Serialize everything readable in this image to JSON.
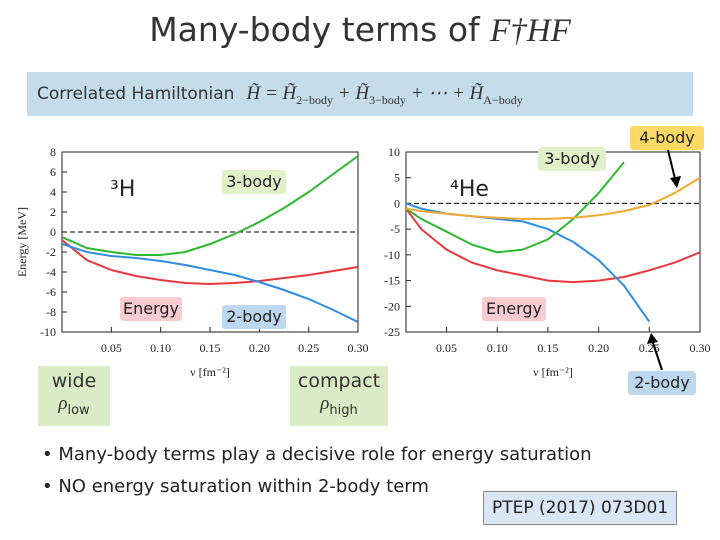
{
  "title": {
    "text": "Many-body terms of ",
    "math": "F†HF"
  },
  "banner": {
    "label": "Correlated Hamiltonian",
    "equation": [
      {
        "t": "H̃"
      },
      {
        "t": " = "
      },
      {
        "t": "H̃",
        "sub": "2−body"
      },
      {
        "t": " + "
      },
      {
        "t": "H̃",
        "sub": "3−body"
      },
      {
        "t": " + ⋯ + "
      },
      {
        "t": "H̃",
        "sub": "A−body"
      }
    ]
  },
  "density_labels": [
    {
      "word": "wide",
      "rho": "ρ",
      "sub": "low"
    },
    {
      "word": "compact",
      "rho": "ρ",
      "sub": "high"
    }
  ],
  "bullets": [
    "Many-body terms play a decisive role for energy saturation",
    "NO energy saturation within 2-body term"
  ],
  "reference": "PTEP (2017) 073D01",
  "chart_data": [
    {
      "type": "line",
      "label": "³H",
      "ylabel": "Energy [MeV]",
      "xlabel": "ν [fm⁻²]",
      "x": [
        0,
        0.025,
        0.05,
        0.075,
        0.1,
        0.125,
        0.15,
        0.175,
        0.2,
        0.225,
        0.25,
        0.275,
        0.3
      ],
      "xlim": [
        0,
        0.3
      ],
      "ylim": [
        -10,
        8
      ],
      "xticks": [
        0.05,
        {
          "value": 0.1,
          "label": "0.10"
        },
        0.15,
        {
          "value": 0.2,
          "label": "0.20"
        },
        0.25,
        {
          "value": 0.3,
          "label": "0.30"
        }
      ],
      "yticks": [
        8,
        6,
        4,
        2,
        0,
        -2,
        -4,
        -6,
        -8,
        -10
      ],
      "reference_line": 0,
      "series": [
        {
          "name": "Energy",
          "color": "#e8383d",
          "box": "#f8cbd0",
          "values": [
            -0.8,
            -2.8,
            -3.8,
            -4.4,
            -4.8,
            -5.1,
            -5.2,
            -5.1,
            -4.9,
            -4.6,
            -4.3,
            -3.9,
            -3.5
          ]
        },
        {
          "name": "2-body",
          "color": "#2f8ee0",
          "box": "#bdd7ee",
          "values": [
            -1.2,
            -2.0,
            -2.4,
            -2.6,
            -2.9,
            -3.3,
            -3.8,
            -4.3,
            -5.0,
            -5.8,
            -6.7,
            -7.8,
            -9.0
          ]
        },
        {
          "name": "3-body",
          "color": "#2db82d",
          "box": "#e2f0c9",
          "values": [
            -0.5,
            -1.6,
            -2.0,
            -2.3,
            -2.3,
            -2.0,
            -1.2,
            -0.2,
            1.0,
            2.4,
            4.0,
            5.8,
            7.6
          ]
        }
      ]
    },
    {
      "type": "line",
      "label": "⁴He",
      "xlabel": "ν [fm⁻²]",
      "x": [
        0.01,
        0.025,
        0.05,
        0.075,
        0.1,
        0.125,
        0.15,
        0.175,
        0.2,
        0.225,
        0.25,
        0.275,
        0.3
      ],
      "xlim": [
        0.01,
        0.3
      ],
      "ylim": [
        -25,
        10
      ],
      "xticks": [
        0.05,
        {
          "value": 0.1,
          "label": "0.10"
        },
        0.15,
        {
          "value": 0.2,
          "label": "0.20"
        },
        0.25,
        {
          "value": 0.3,
          "label": "0.30"
        }
      ],
      "yticks": [
        10,
        5,
        0,
        -5,
        -10,
        -15,
        -20,
        -25
      ],
      "reference_line": 0,
      "series": [
        {
          "name": "Energy",
          "color": "#e8383d",
          "box": "#f8cbd0",
          "values": [
            -1,
            -5,
            -9,
            -11.5,
            -13,
            -14,
            -15,
            -15.3,
            -15,
            -14.3,
            -13,
            -11.5,
            -9.5
          ]
        },
        {
          "name": "2-body",
          "color": "#2f8ee0",
          "box": "#bdd7ee",
          "values": [
            0,
            -1,
            -2,
            -2.5,
            -3,
            -3.5,
            -5,
            -7.5,
            -11,
            -16,
            -23,
            null,
            null
          ]
        },
        {
          "name": "3-body",
          "color": "#2db82d",
          "box": "#e2f0c9",
          "values": [
            -1,
            -3,
            -5.5,
            -8,
            -9.5,
            -9,
            -7,
            -3,
            2,
            8,
            null,
            null,
            null
          ]
        },
        {
          "name": "4-body",
          "color": "#f0a830",
          "box": "#ffd966",
          "values": [
            -1,
            -1.5,
            -2,
            -2.5,
            -2.8,
            -3,
            -3,
            -2.8,
            -2.3,
            -1.5,
            -0.3,
            2,
            5
          ]
        }
      ]
    }
  ]
}
